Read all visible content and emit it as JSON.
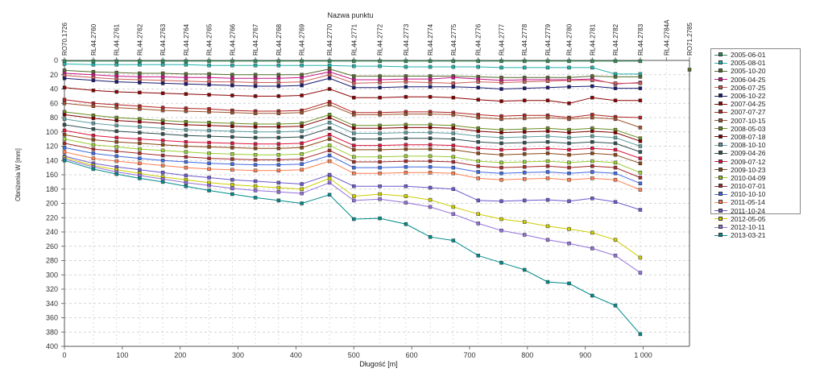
{
  "chart_data": {
    "type": "line",
    "title": "Nazwa punktu",
    "xlabel": "Długość [m]",
    "ylabel": "Obniżenia W [mm]",
    "xlim": [
      0,
      1080
    ],
    "ylim": [
      0,
      400
    ],
    "y_inverted": true,
    "grid": "horizontal dashed",
    "legend_position": "right",
    "x_tick_labels": [
      "0",
      "100",
      "200",
      "300",
      "400",
      "500",
      "600",
      "700",
      "800",
      "900",
      "1 000"
    ],
    "y_tick_labels": [
      "0",
      "20",
      "40",
      "60",
      "80",
      "100",
      "120",
      "140",
      "160",
      "180",
      "200",
      "220",
      "240",
      "260",
      "280",
      "300",
      "320",
      "340",
      "360",
      "380",
      "400"
    ],
    "points": [
      {
        "name": "RO70.1726",
        "x": 0
      },
      {
        "name": "RL44.2760",
        "x": 50
      },
      {
        "name": "RL44.2761",
        "x": 90
      },
      {
        "name": "RL44.2762",
        "x": 130
      },
      {
        "name": "RL44.2763",
        "x": 170
      },
      {
        "name": "RL44.2764",
        "x": 210
      },
      {
        "name": "RL44.2765",
        "x": 250
      },
      {
        "name": "RL44.2766",
        "x": 290
      },
      {
        "name": "RL44.2767",
        "x": 330
      },
      {
        "name": "RL44.2768",
        "x": 370
      },
      {
        "name": "RL44.2769",
        "x": 410
      },
      {
        "name": "RL44.2770",
        "x": 458
      },
      {
        "name": "RL44.2771",
        "x": 500
      },
      {
        "name": "RL44.2772",
        "x": 545
      },
      {
        "name": "RL44.2773",
        "x": 590
      },
      {
        "name": "RL44.2774",
        "x": 632
      },
      {
        "name": "RL44.2775",
        "x": 672
      },
      {
        "name": "RL44.2776",
        "x": 715
      },
      {
        "name": "RL44.2777",
        "x": 755
      },
      {
        "name": "RL44.2778",
        "x": 795
      },
      {
        "name": "RL44.2779",
        "x": 835
      },
      {
        "name": "RL44.2780",
        "x": 872
      },
      {
        "name": "RL44.2781",
        "x": 912
      },
      {
        "name": "RL44.2782",
        "x": 952
      },
      {
        "name": "RL44.2783",
        "x": 995
      },
      {
        "name": "RL44.2784A",
        "x": 1040
      },
      {
        "name": "RO71.2785",
        "x": 1080
      }
    ],
    "series": [
      {
        "name": "2005-06-01",
        "color": "#2e8b57",
        "values": [
          1,
          1,
          1,
          1,
          1,
          1,
          1,
          1,
          1,
          1,
          1,
          1,
          1,
          1,
          1,
          1,
          1,
          1,
          1,
          1,
          1,
          1,
          1,
          1,
          1,
          null,
          null
        ]
      },
      {
        "name": "2005-08-01",
        "color": "#20b2aa",
        "values": [
          5,
          6,
          6,
          6,
          6,
          6,
          7,
          7,
          7,
          7,
          7,
          7,
          8,
          8,
          9,
          9,
          9,
          9,
          10,
          10,
          10,
          10,
          10,
          19,
          19,
          null,
          null
        ]
      },
      {
        "name": "2005-10-20",
        "color": "#556b2f",
        "values": [
          14,
          16,
          17,
          18,
          18,
          19,
          19,
          20,
          20,
          20,
          20,
          12,
          22,
          22,
          22,
          22,
          22,
          23,
          24,
          24,
          24,
          24,
          22,
          23,
          23,
          null,
          13
        ]
      },
      {
        "name": "2006-04-25",
        "color": "#c71585",
        "values": [
          18,
          20,
          22,
          23,
          23,
          24,
          24,
          25,
          25,
          25,
          24,
          16,
          27,
          27,
          26,
          26,
          24,
          26,
          28,
          27,
          27,
          27,
          26,
          33,
          31,
          null,
          null
        ]
      },
      {
        "name": "2006-07-25",
        "color": "#cd5c5c",
        "values": [
          21,
          24,
          26,
          27,
          28,
          29,
          30,
          30,
          31,
          31,
          30,
          20,
          32,
          31,
          30,
          31,
          32,
          30,
          31,
          30,
          29,
          28,
          28,
          32,
          32,
          null,
          null
        ]
      },
      {
        "name": "2006-10-22",
        "color": "#191970",
        "values": [
          25,
          28,
          30,
          31,
          32,
          33,
          34,
          35,
          36,
          36,
          35,
          25,
          38,
          38,
          37,
          37,
          37,
          38,
          40,
          39,
          38,
          37,
          36,
          39,
          39,
          null,
          null
        ]
      },
      {
        "name": "2007-04-25",
        "color": "#8b0000",
        "values": [
          38,
          42,
          44,
          45,
          46,
          47,
          48,
          49,
          50,
          50,
          49,
          40,
          52,
          52,
          51,
          51,
          52,
          55,
          57,
          56,
          56,
          60,
          52,
          56,
          56,
          null,
          null
        ]
      },
      {
        "name": "2007-07-27",
        "color": "#b22222",
        "values": [
          55,
          60,
          62,
          64,
          66,
          67,
          68,
          70,
          71,
          71,
          70,
          58,
          73,
          73,
          72,
          72,
          73,
          76,
          78,
          77,
          77,
          80,
          76,
          79,
          80,
          null,
          null
        ]
      },
      {
        "name": "2007-10-15",
        "color": "#a0522d",
        "values": [
          60,
          64,
          66,
          68,
          70,
          71,
          72,
          73,
          74,
          74,
          73,
          62,
          76,
          76,
          75,
          75,
          76,
          80,
          82,
          81,
          80,
          82,
          80,
          82,
          94,
          null,
          null
        ]
      },
      {
        "name": "2008-05-03",
        "color": "#6b8e23",
        "values": [
          72,
          77,
          80,
          82,
          84,
          86,
          87,
          88,
          89,
          89,
          88,
          76,
          91,
          91,
          90,
          90,
          91,
          95,
          97,
          96,
          95,
          97,
          95,
          97,
          109,
          null,
          null
        ]
      },
      {
        "name": "2008-07-18",
        "color": "#800000",
        "values": [
          76,
          81,
          84,
          86,
          88,
          90,
          91,
          92,
          93,
          93,
          92,
          80,
          95,
          95,
          94,
          94,
          95,
          99,
          101,
          100,
          99,
          101,
          99,
          101,
          113,
          null,
          null
        ]
      },
      {
        "name": "2008-10-10",
        "color": "#5f9ea0",
        "values": [
          82,
          88,
          91,
          93,
          95,
          97,
          98,
          99,
          100,
          100,
          99,
          87,
          102,
          102,
          101,
          101,
          102,
          106,
          108,
          107,
          106,
          108,
          106,
          108,
          120,
          null,
          null
        ]
      },
      {
        "name": "2009-04-26",
        "color": "#2f4f4f",
        "values": [
          90,
          96,
          99,
          101,
          103,
          105,
          106,
          107,
          108,
          108,
          107,
          95,
          110,
          110,
          109,
          109,
          110,
          114,
          116,
          115,
          114,
          116,
          114,
          116,
          128,
          null,
          null
        ]
      },
      {
        "name": "2009-07-12",
        "color": "#dc143c",
        "values": [
          98,
          105,
          108,
          110,
          112,
          114,
          115,
          116,
          117,
          117,
          116,
          104,
          119,
          119,
          118,
          118,
          119,
          123,
          125,
          124,
          123,
          125,
          123,
          125,
          137,
          null,
          null
        ]
      },
      {
        "name": "2009-10-23",
        "color": "#8b4513",
        "values": [
          104,
          111,
          114,
          116,
          118,
          120,
          121,
          122,
          123,
          123,
          122,
          110,
          125,
          125,
          124,
          124,
          125,
          130,
          132,
          131,
          130,
          132,
          130,
          132,
          144,
          null,
          null
        ]
      },
      {
        "name": "2010-04-09",
        "color": "#9acd32",
        "values": [
          110,
          118,
          121,
          124,
          126,
          128,
          130,
          131,
          132,
          132,
          131,
          119,
          135,
          135,
          134,
          134,
          135,
          141,
          143,
          142,
          141,
          143,
          141,
          143,
          157,
          null,
          null
        ]
      },
      {
        "name": "2010-07-01",
        "color": "#a52a2a",
        "values": [
          116,
          124,
          127,
          130,
          133,
          135,
          137,
          138,
          139,
          139,
          138,
          126,
          142,
          142,
          141,
          141,
          142,
          148,
          150,
          149,
          148,
          150,
          148,
          150,
          164,
          null,
          null
        ]
      },
      {
        "name": "2010-10-10",
        "color": "#4169e1",
        "values": [
          122,
          130,
          134,
          137,
          140,
          142,
          144,
          145,
          146,
          146,
          145,
          133,
          150,
          150,
          149,
          149,
          150,
          156,
          158,
          157,
          156,
          158,
          156,
          158,
          172,
          null,
          null
        ]
      },
      {
        "name": "2011-05-14",
        "color": "#ff7f50",
        "values": [
          128,
          137,
          141,
          144,
          147,
          150,
          152,
          153,
          154,
          154,
          153,
          141,
          158,
          158,
          157,
          157,
          158,
          165,
          167,
          166,
          165,
          167,
          165,
          167,
          181,
          null,
          null
        ]
      },
      {
        "name": "2011-10-24",
        "color": "#6a5acd",
        "values": [
          134,
          144,
          149,
          153,
          157,
          161,
          164,
          167,
          169,
          171,
          173,
          160,
          176,
          176,
          176,
          178,
          180,
          196,
          197,
          196,
          195,
          197,
          193,
          198,
          209,
          null,
          null
        ]
      },
      {
        "name": "2012-05-05",
        "color": "#cdcd00",
        "values": [
          136,
          147,
          153,
          158,
          163,
          167,
          171,
          174,
          176,
          178,
          180,
          165,
          190,
          187,
          190,
          195,
          205,
          215,
          222,
          226,
          232,
          236,
          241,
          251,
          276,
          null,
          null
        ]
      },
      {
        "name": "2012-10-11",
        "color": "#9370db",
        "values": [
          138,
          149,
          156,
          161,
          166,
          171,
          175,
          179,
          182,
          184,
          186,
          171,
          196,
          194,
          199,
          205,
          215,
          228,
          238,
          244,
          251,
          256,
          263,
          273,
          297,
          null,
          null
        ]
      },
      {
        "name": "2013-03-21",
        "color": "#008b8b",
        "values": [
          140,
          152,
          159,
          165,
          170,
          176,
          182,
          187,
          192,
          196,
          200,
          188,
          222,
          221,
          229,
          247,
          252,
          273,
          283,
          293,
          310,
          312,
          329,
          343,
          383,
          null,
          null
        ]
      }
    ]
  }
}
